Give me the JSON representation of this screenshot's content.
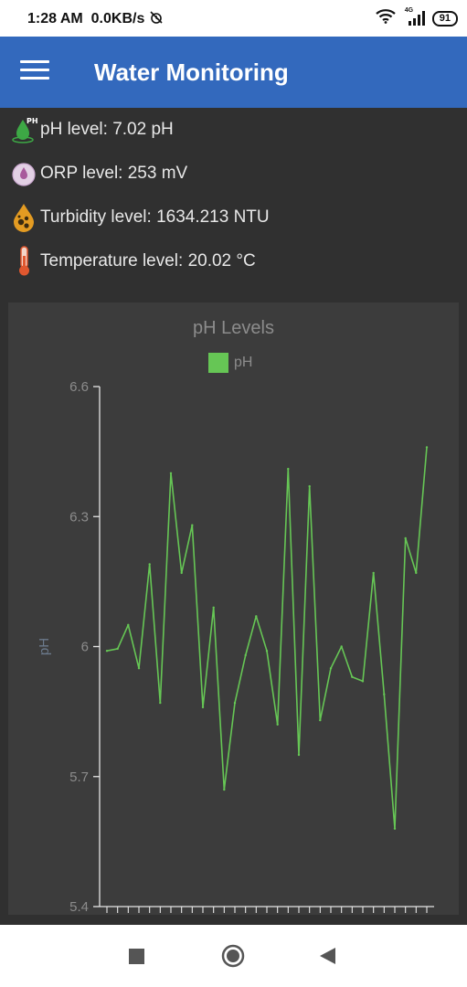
{
  "status_bar": {
    "time": "1:28 AM",
    "data_rate": "0.0KB/s",
    "network": "4G",
    "battery": "91"
  },
  "app_bar": {
    "title": "Water Monitoring",
    "menu_icon": "menu-icon"
  },
  "readings": [
    {
      "icon": "ph-drop-icon",
      "label": "pH level: 7.02 pH"
    },
    {
      "icon": "orp-drop-icon",
      "label": "ORP level: 253 mV"
    },
    {
      "icon": "turbidity-drop-icon",
      "label": "Turbidity level: 1634.213 NTU"
    },
    {
      "icon": "thermometer-icon",
      "label": "Temperature level: 20.02 °C"
    }
  ],
  "colors": {
    "accent": "#3369bd",
    "series": "#66c655",
    "background": "#303030",
    "card": "#3c3c3c"
  },
  "chart_data": {
    "type": "line",
    "title": "pH Levels",
    "legend": [
      "pH"
    ],
    "xlabel": "",
    "ylabel": "pH",
    "ylim": [
      5.4,
      6.6
    ],
    "yticks": [
      "6.6",
      "6.3",
      "6",
      "5.7",
      "5.4"
    ],
    "series": [
      {
        "name": "pH",
        "values": [
          5.99,
          5.995,
          6.05,
          5.95,
          6.19,
          5.87,
          6.4,
          6.17,
          6.28,
          5.86,
          6.09,
          5.67,
          5.87,
          5.98,
          6.07,
          5.99,
          5.82,
          6.41,
          5.75,
          6.37,
          5.83,
          5.95,
          6.0,
          5.93,
          5.92,
          6.17,
          5.89,
          5.58,
          6.25,
          6.17,
          6.46
        ]
      }
    ]
  }
}
